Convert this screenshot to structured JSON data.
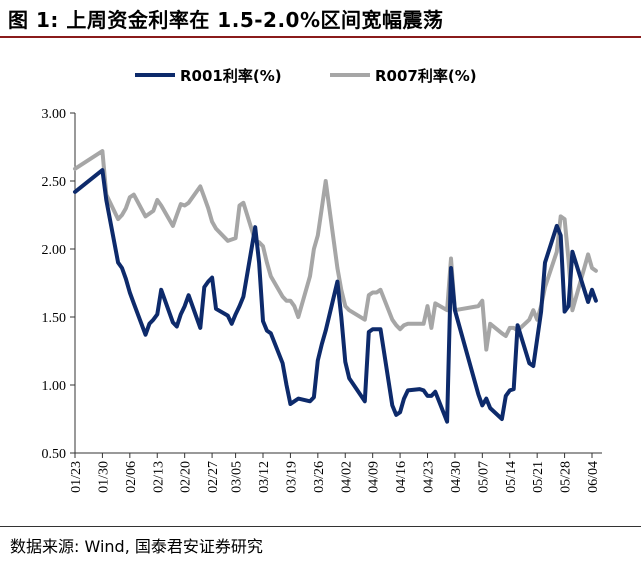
{
  "title": "图 1:  上周资金利率在 1.5-2.0%区间宽幅震荡",
  "source": "数据来源:  Wind,  国泰君安证券研究",
  "chart_data": {
    "type": "line",
    "ylim": [
      0.5,
      3.0
    ],
    "yticks": [
      "3.00",
      "2.50",
      "2.00",
      "1.50",
      "1.00",
      "0.50"
    ],
    "xticks": [
      "01/23",
      "01/30",
      "02/06",
      "02/13",
      "02/20",
      "02/27",
      "03/05",
      "03/12",
      "03/19",
      "03/26",
      "04/02",
      "04/09",
      "04/16",
      "04/23",
      "04/30",
      "05/07",
      "05/14",
      "05/21",
      "05/28",
      "06/04"
    ],
    "legend_position": "top",
    "grid": false,
    "series": [
      {
        "name": "R001利率(%)",
        "color": "#0d2a6b",
        "x": [
          "01/23",
          "01/30",
          "01/31",
          "02/03",
          "02/04",
          "02/05",
          "02/06",
          "02/07",
          "02/10",
          "02/11",
          "02/12",
          "02/13",
          "02/14",
          "02/17",
          "02/18",
          "02/19",
          "02/20",
          "02/21",
          "02/24",
          "02/25",
          "02/26",
          "02/27",
          "02/28",
          "03/03",
          "03/04",
          "03/05",
          "03/06",
          "03/07",
          "03/10",
          "03/11",
          "03/12",
          "03/13",
          "03/14",
          "03/17",
          "03/18",
          "03/19",
          "03/20",
          "03/21",
          "03/24",
          "03/25",
          "03/26",
          "03/27",
          "03/28",
          "03/31",
          "04/01",
          "04/02",
          "04/03",
          "04/07",
          "04/08",
          "04/09",
          "04/10",
          "04/11",
          "04/14",
          "04/15",
          "04/16",
          "04/17",
          "04/18",
          "04/21",
          "04/22",
          "04/23",
          "04/24",
          "04/25",
          "04/28",
          "04/29",
          "04/30",
          "05/06",
          "05/07",
          "05/08",
          "05/09",
          "05/12",
          "05/13",
          "05/14",
          "05/15",
          "05/16",
          "05/19",
          "05/20",
          "05/21",
          "05/22",
          "05/23",
          "05/26",
          "05/27",
          "05/28",
          "05/29",
          "05/30",
          "06/03",
          "06/04",
          "06/05"
        ],
        "values": [
          2.42,
          2.58,
          2.36,
          1.9,
          1.86,
          1.78,
          1.68,
          1.6,
          1.37,
          1.45,
          1.48,
          1.52,
          1.7,
          1.46,
          1.43,
          1.52,
          1.58,
          1.66,
          1.42,
          1.72,
          1.76,
          1.79,
          1.56,
          1.51,
          1.45,
          1.52,
          1.58,
          1.65,
          2.16,
          1.9,
          1.47,
          1.4,
          1.38,
          1.16,
          1.0,
          0.86,
          0.88,
          0.9,
          0.88,
          0.91,
          1.18,
          1.3,
          1.4,
          1.76,
          1.5,
          1.17,
          1.05,
          0.88,
          1.39,
          1.41,
          1.41,
          1.41,
          0.85,
          0.78,
          0.8,
          0.9,
          0.96,
          0.97,
          0.96,
          0.92,
          0.92,
          0.95,
          0.73,
          1.86,
          1.55,
          0.93,
          0.85,
          0.9,
          0.83,
          0.75,
          0.92,
          0.96,
          0.97,
          1.44,
          1.16,
          1.14,
          1.34,
          1.54,
          1.9,
          2.17,
          2.1,
          1.54,
          1.58,
          1.98,
          1.61,
          1.7,
          1.62
        ]
      },
      {
        "name": "R007利率(%)",
        "color": "#a6a6a6",
        "x": [
          "01/23",
          "01/30",
          "01/31",
          "02/03",
          "02/04",
          "02/05",
          "02/06",
          "02/07",
          "02/10",
          "02/11",
          "02/12",
          "02/13",
          "02/14",
          "02/17",
          "02/18",
          "02/19",
          "02/20",
          "02/21",
          "02/24",
          "02/25",
          "02/26",
          "02/27",
          "02/28",
          "03/03",
          "03/04",
          "03/05",
          "03/06",
          "03/07",
          "03/10",
          "03/11",
          "03/12",
          "03/13",
          "03/14",
          "03/17",
          "03/18",
          "03/19",
          "03/20",
          "03/21",
          "03/24",
          "03/25",
          "03/26",
          "03/27",
          "03/28",
          "03/31",
          "04/01",
          "04/02",
          "04/03",
          "04/07",
          "04/08",
          "04/09",
          "04/10",
          "04/11",
          "04/14",
          "04/15",
          "04/16",
          "04/17",
          "04/18",
          "04/21",
          "04/22",
          "04/23",
          "04/24",
          "04/25",
          "04/28",
          "04/29",
          "04/30",
          "05/06",
          "05/07",
          "05/08",
          "05/09",
          "05/12",
          "05/13",
          "05/14",
          "05/15",
          "05/16",
          "05/19",
          "05/20",
          "05/21",
          "05/22",
          "05/23",
          "05/26",
          "05/27",
          "05/28",
          "05/29",
          "05/30",
          "06/03",
          "06/04",
          "06/05"
        ],
        "values": [
          2.59,
          2.72,
          2.4,
          2.22,
          2.25,
          2.3,
          2.38,
          2.4,
          2.24,
          2.26,
          2.28,
          2.36,
          2.32,
          2.17,
          2.25,
          2.33,
          2.32,
          2.34,
          2.46,
          2.38,
          2.3,
          2.2,
          2.15,
          2.06,
          2.07,
          2.08,
          2.32,
          2.34,
          2.06,
          2.05,
          2.02,
          1.9,
          1.8,
          1.65,
          1.62,
          1.62,
          1.58,
          1.5,
          1.8,
          2.0,
          2.1,
          2.3,
          2.5,
          1.86,
          1.7,
          1.58,
          1.55,
          1.48,
          1.66,
          1.68,
          1.68,
          1.7,
          1.48,
          1.44,
          1.41,
          1.44,
          1.45,
          1.45,
          1.45,
          1.58,
          1.42,
          1.6,
          1.55,
          1.93,
          1.55,
          1.58,
          1.62,
          1.26,
          1.45,
          1.38,
          1.36,
          1.42,
          1.42,
          1.4,
          1.48,
          1.55,
          1.48,
          1.58,
          1.72,
          1.98,
          2.24,
          2.22,
          1.92,
          1.55,
          1.96,
          1.86,
          1.84
        ]
      }
    ]
  }
}
